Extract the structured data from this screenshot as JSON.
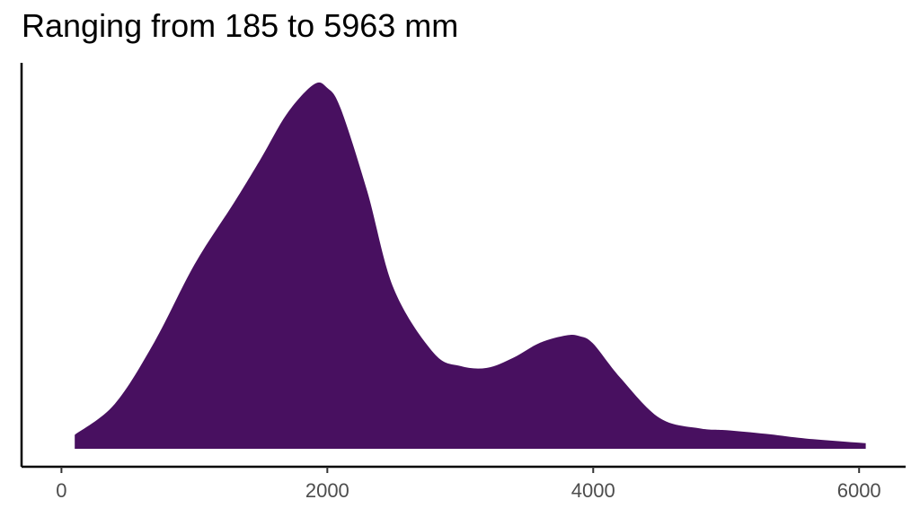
{
  "chart_data": {
    "type": "area",
    "title": "Ranging from 185 to 5963 mm",
    "xlabel": "",
    "ylabel": "",
    "xlim": [
      -300,
      6350
    ],
    "ylim": [
      0,
      0.000415
    ],
    "x_ticks": [
      0,
      2000,
      4000,
      6000
    ],
    "x_tick_labels": [
      "0",
      "2000",
      "4000",
      "6000"
    ],
    "y_ticks": [],
    "grid": false,
    "legend": "none",
    "fill_color": "#481060",
    "series": [
      {
        "x": [
          100,
          400,
          700,
          1000,
          1300,
          1500,
          1700,
          1900,
          2000,
          2100,
          2300,
          2500,
          2800,
          3000,
          3200,
          3400,
          3600,
          3800,
          3900,
          4000,
          4200,
          4500,
          4800,
          5000,
          5300,
          5600,
          6050
        ],
        "y": [
          1.5e-05,
          4.8e-05,
          0.000115,
          0.000198,
          0.000265,
          0.000312,
          0.000361,
          0.000392,
          0.000388,
          0.000366,
          0.000277,
          0.000172,
          0.000103,
          8.9e-05,
          8.7e-05,
          9.8e-05,
          0.000114,
          0.000122,
          0.000121,
          0.000113,
          7.7e-05,
          3.3e-05,
          2.2e-05,
          2e-05,
          1.6e-05,
          1.1e-05,
          6e-06
        ]
      }
    ]
  }
}
